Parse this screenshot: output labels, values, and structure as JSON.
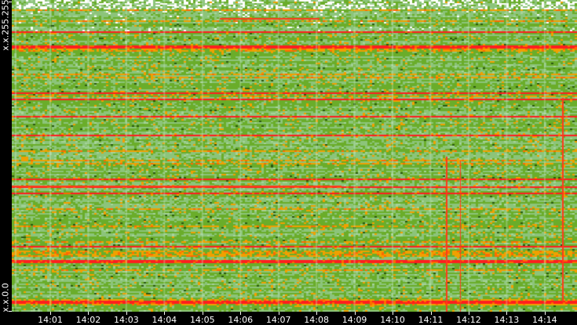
{
  "chart_data": {
    "type": "heatmap",
    "title": "",
    "y_tick_labels": [
      "x.x.255.255",
      "x.x.0.0"
    ],
    "x_tick_labels": [
      "14:01",
      "14:02",
      "14:03",
      "14:04",
      "14:05",
      "14:06",
      "14:07",
      "14:08",
      "14:09",
      "14:10",
      "14:11",
      "14:12",
      "14:13",
      "14:14",
      "14"
    ],
    "color_scale": [
      "#ffffff",
      "#8cc47a",
      "#6aad2a",
      "#f0a000",
      "#ff6a00",
      "#ff1e1e",
      "#2a5a10"
    ],
    "background": "#000000",
    "grid": true
  }
}
